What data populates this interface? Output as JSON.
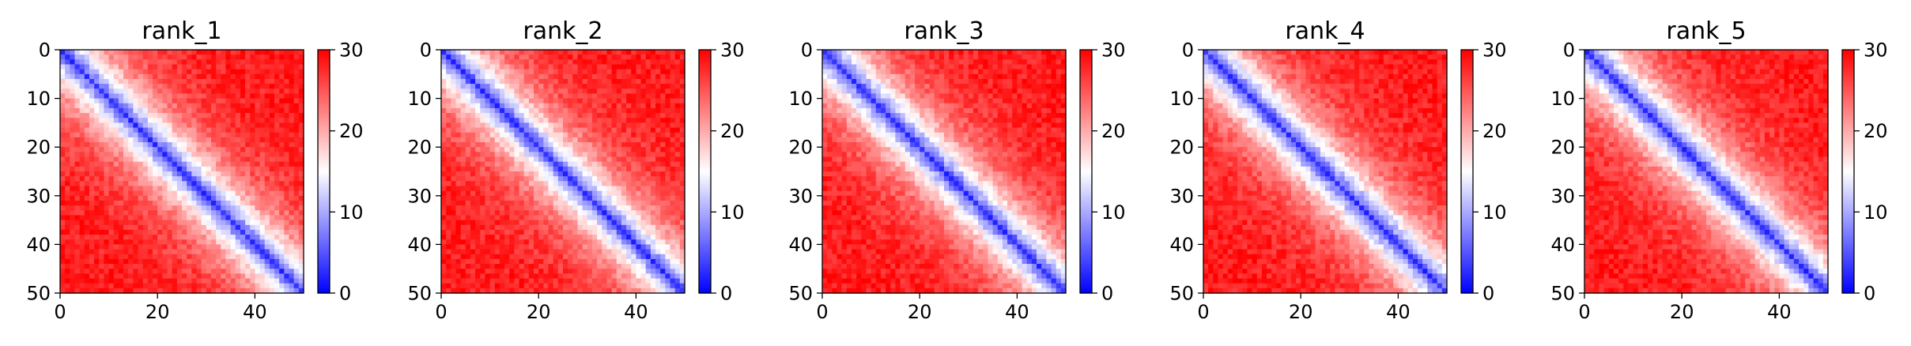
{
  "chart_data": [
    {
      "type": "heatmap",
      "title": "rank_1",
      "size": 50,
      "extent": [
        0,
        50
      ],
      "xticks": [
        0,
        20,
        40
      ],
      "yticks": [
        0,
        10,
        20,
        30,
        40,
        50
      ],
      "colorbar": {
        "min": 0,
        "max": 30,
        "ticks": [
          0,
          10,
          20,
          30
        ]
      },
      "colormap": [
        "#0000ff",
        "#ffffff",
        "#ff0000"
      ],
      "seed": 11,
      "grid": false
    },
    {
      "type": "heatmap",
      "title": "rank_2",
      "size": 50,
      "extent": [
        0,
        50
      ],
      "xticks": [
        0,
        20,
        40
      ],
      "yticks": [
        0,
        10,
        20,
        30,
        40,
        50
      ],
      "colorbar": {
        "min": 0,
        "max": 30,
        "ticks": [
          0,
          10,
          20,
          30
        ]
      },
      "colormap": [
        "#0000ff",
        "#ffffff",
        "#ff0000"
      ],
      "seed": 23,
      "grid": false
    },
    {
      "type": "heatmap",
      "title": "rank_3",
      "size": 50,
      "extent": [
        0,
        50
      ],
      "xticks": [
        0,
        20,
        40
      ],
      "yticks": [
        0,
        10,
        20,
        30,
        40,
        50
      ],
      "colorbar": {
        "min": 0,
        "max": 30,
        "ticks": [
          0,
          10,
          20,
          30
        ]
      },
      "colormap": [
        "#0000ff",
        "#ffffff",
        "#ff0000"
      ],
      "seed": 37,
      "grid": false
    },
    {
      "type": "heatmap",
      "title": "rank_4",
      "size": 50,
      "extent": [
        0,
        50
      ],
      "xticks": [
        0,
        20,
        40
      ],
      "yticks": [
        0,
        10,
        20,
        30,
        40,
        50
      ],
      "colorbar": {
        "min": 0,
        "max": 30,
        "ticks": [
          0,
          10,
          20,
          30
        ]
      },
      "colormap": [
        "#0000ff",
        "#ffffff",
        "#ff0000"
      ],
      "seed": 41,
      "grid": false
    },
    {
      "type": "heatmap",
      "title": "rank_5",
      "size": 50,
      "extent": [
        0,
        50
      ],
      "xticks": [
        0,
        20,
        40
      ],
      "yticks": [
        0,
        10,
        20,
        30,
        40,
        50
      ],
      "colorbar": {
        "min": 0,
        "max": 30,
        "ticks": [
          0,
          10,
          20,
          30
        ]
      },
      "colormap": [
        "#0000ff",
        "#ffffff",
        "#ff0000"
      ],
      "seed": 53,
      "grid": false
    }
  ]
}
